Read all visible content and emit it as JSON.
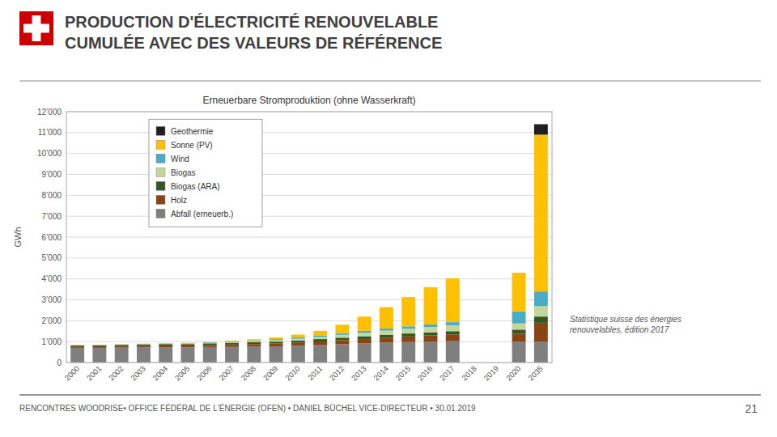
{
  "chart_data": {
    "type": "bar",
    "stacked": true,
    "title": "PRODUCTION D'ÉLECTRICITÉ RENOUVELABLE\nCUMULÉE AVEC DES VALEURS DE RÉFÉRENCE",
    "subtitle": "Erneuerbare Stromproduktion (ohne Wasserkraft)",
    "ylabel": "GWh",
    "annotations": [
      "Statistique suisse des énergies\nrenouvelables, édition 2017",
      "RENCONTRES WOODRISE•  OFFICE FÉDÉRAL DE L'ÉNERGIE (OFEN) • DANIEL BÜCHEL VICE-DIRECTEUR • 30.01.2019",
      "21"
    ],
    "categories": [
      "2000",
      "2001",
      "2002",
      "2003",
      "2004",
      "2005",
      "2006",
      "2007",
      "2008",
      "2009",
      "2010",
      "2011",
      "2012",
      "2013",
      "2014",
      "2015",
      "2016",
      "2017",
      "2018",
      "2019",
      "2020",
      "2035"
    ],
    "series": [
      {
        "name": "Abfall (erneuerb.)",
        "color": "#7f7f7f",
        "values": [
          700,
          700,
          710,
          720,
          730,
          720,
          740,
          750,
          760,
          770,
          800,
          830,
          870,
          910,
          950,
          980,
          1000,
          1020,
          0,
          0,
          1000,
          1000
        ]
      },
      {
        "name": "Holz",
        "color": "#8B4513",
        "values": [
          65,
          70,
          75,
          80,
          85,
          90,
          100,
          110,
          120,
          135,
          155,
          175,
          195,
          215,
          240,
          265,
          295,
          325,
          0,
          0,
          380,
          900
        ]
      },
      {
        "name": "Biogas (ARA)",
        "color": "#375623",
        "values": [
          55,
          58,
          62,
          65,
          68,
          72,
          78,
          82,
          88,
          95,
          105,
          115,
          125,
          135,
          140,
          145,
          150,
          155,
          0,
          0,
          195,
          300
        ]
      },
      {
        "name": "Biogas",
        "color": "#c4d79b",
        "values": [
          8,
          10,
          12,
          14,
          18,
          22,
          28,
          38,
          52,
          68,
          85,
          105,
          135,
          165,
          195,
          225,
          255,
          285,
          0,
          0,
          295,
          500
        ]
      },
      {
        "name": "Wind",
        "color": "#4bacc6",
        "values": [
          8,
          10,
          12,
          15,
          18,
          20,
          22,
          28,
          38,
          50,
          55,
          75,
          85,
          95,
          105,
          115,
          125,
          145,
          0,
          0,
          580,
          700
        ]
      },
      {
        "name": "Sonne (PV)",
        "color": "#ffc000",
        "values": [
          3,
          5,
          8,
          10,
          12,
          16,
          22,
          35,
          55,
          85,
          135,
          215,
          400,
          680,
          1020,
          1400,
          1780,
          2100,
          0,
          0,
          1850,
          7500
        ]
      },
      {
        "name": "Geothermie",
        "color": "#1f1f1f",
        "values": [
          0,
          0,
          0,
          0,
          0,
          0,
          0,
          0,
          0,
          0,
          0,
          0,
          0,
          0,
          0,
          0,
          0,
          0,
          0,
          0,
          0,
          500
        ]
      }
    ],
    "ylim": [
      0,
      12000
    ],
    "yticks": [
      0,
      {
        "value": 1000,
        "label": "1’000"
      },
      {
        "value": 2000,
        "label": "2’000"
      },
      {
        "value": 3000,
        "label": "3’000"
      },
      {
        "value": 4000,
        "label": "4’000"
      },
      {
        "value": 5000,
        "label": "5’000"
      },
      {
        "value": 6000,
        "label": "6’000"
      },
      {
        "value": 7000,
        "label": "7’000"
      },
      {
        "value": 8000,
        "label": "8’000"
      },
      {
        "value": 9000,
        "label": "9’000"
      },
      {
        "value": 10000,
        "label": "10’000"
      },
      {
        "value": 11000,
        "label": "11’000"
      },
      {
        "value": 12000,
        "label": "12’000"
      }
    ],
    "grid": true,
    "legend": "upper left"
  }
}
